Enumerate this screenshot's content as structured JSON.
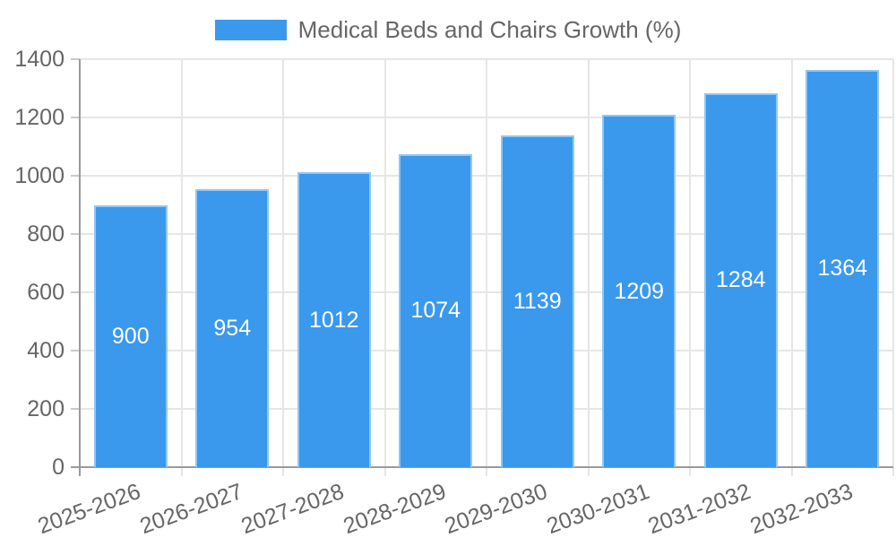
{
  "legend": {
    "label": "Medical Beds and Chairs Growth (%)"
  },
  "chart_data": {
    "type": "bar",
    "title": "Medical Beds and Chairs Growth (%)",
    "categories": [
      "2025-2026",
      "2026-2027",
      "2027-2028",
      "2028-2029",
      "2029-2030",
      "2030-2031",
      "2031-2032",
      "2032-2033"
    ],
    "values": [
      900,
      954,
      1012,
      1074,
      1139,
      1209,
      1284,
      1364
    ],
    "series": [
      {
        "name": "Medical Beds and Chairs Growth (%)",
        "values": [
          900,
          954,
          1012,
          1074,
          1139,
          1209,
          1284,
          1364
        ]
      }
    ],
    "xlabel": "",
    "ylabel": "",
    "ylim": [
      0,
      1400
    ],
    "ytick_step": 200,
    "yticks": [
      0,
      200,
      400,
      600,
      800,
      1000,
      1200,
      1400
    ],
    "grid": true,
    "legend_position": "top",
    "value_labels": "centered inside bars",
    "colors": {
      "bar_fill": "#3a99ec",
      "bar_border": "rgba(255,255,255,0.45)",
      "value_label_text": "#ffffff",
      "tick_label_text": "#666666",
      "legend_text": "#666666",
      "axis_line": "#9a9a9a",
      "gridline": "#e6e6e6",
      "tick_mark": "#c9c9c9",
      "background": "#ffffff"
    }
  }
}
